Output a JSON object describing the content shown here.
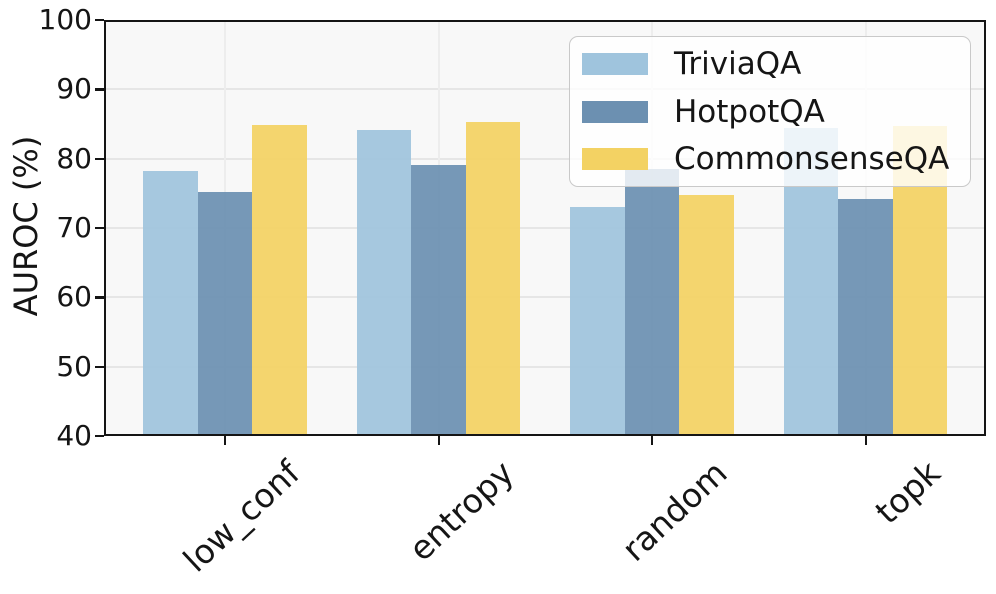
{
  "chart_data": {
    "type": "bar",
    "title": "",
    "xlabel": "",
    "ylabel": "AUROC (%)",
    "categories": [
      "low_conf",
      "entropy",
      "random",
      "topk"
    ],
    "series": [
      {
        "name": "TriviaQA",
        "color": "#9fc4dd",
        "values": [
          78.2,
          84.1,
          73.0,
          84.4
        ]
      },
      {
        "name": "HotpotQA",
        "color": "#6c90b1",
        "values": [
          75.2,
          79.1,
          78.5,
          74.2
        ]
      },
      {
        "name": "CommonsenseQA",
        "color": "#f3d263",
        "values": [
          84.8,
          85.3,
          74.8,
          84.7
        ]
      }
    ],
    "ylim": [
      40,
      100
    ],
    "yticks": [
      40,
      50,
      60,
      70,
      80,
      90,
      100
    ],
    "grid": true,
    "legend_position": "upper right",
    "plot_background": "#f8f8f8",
    "spine_color": "#151515",
    "gridline_color": "#e6e6e6",
    "legend_background": "rgba(255,255,255,0.8)"
  }
}
